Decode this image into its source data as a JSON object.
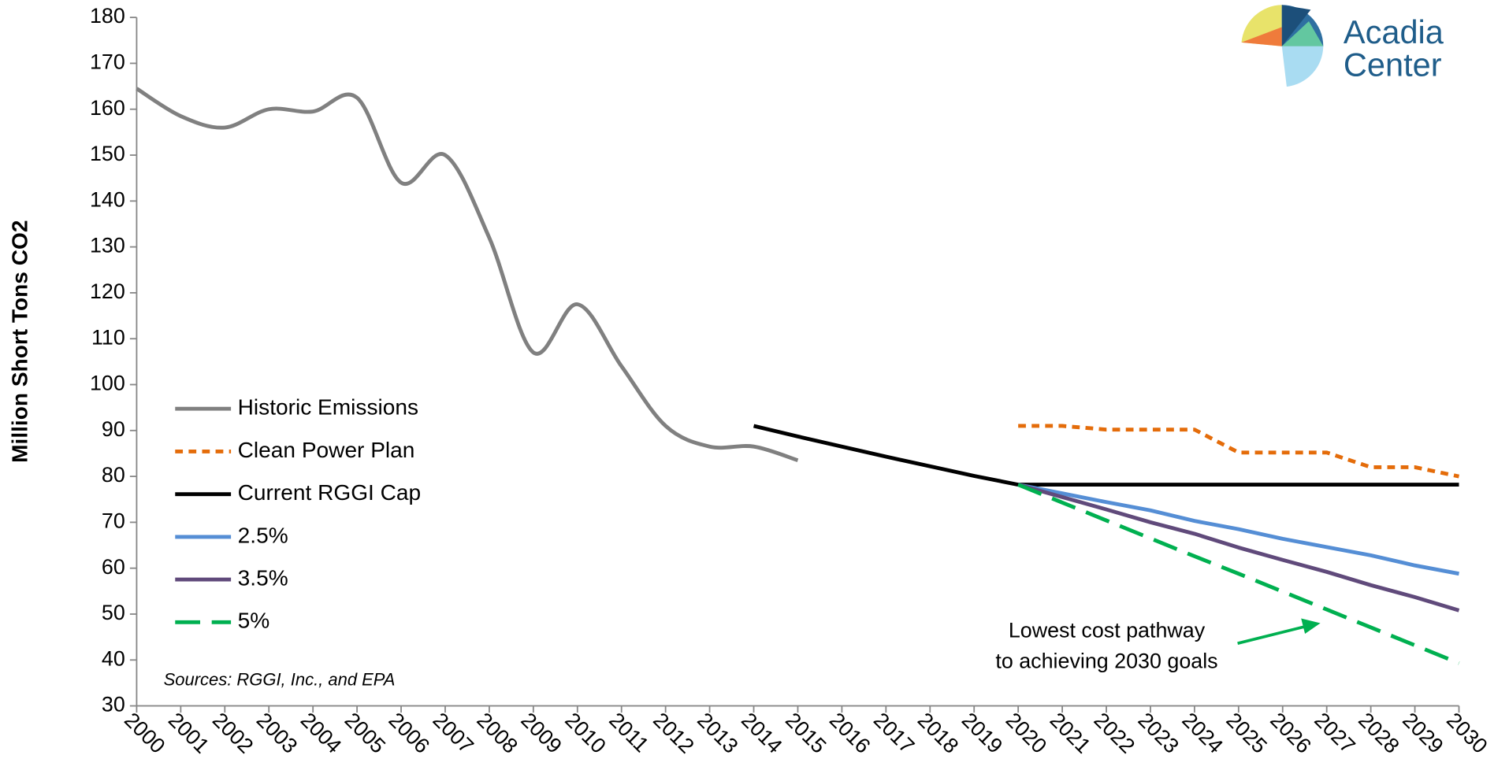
{
  "chart_data": {
    "type": "line",
    "y_label": "Million  Short Tons CO2",
    "source": "Sources: RGGI, Inc., and EPA",
    "annotation": [
      "Lowest cost pathway",
      "to achieving 2030 goals"
    ],
    "logo": [
      "Acadia",
      "Center"
    ],
    "x": [
      2000,
      2001,
      2002,
      2003,
      2004,
      2005,
      2006,
      2007,
      2008,
      2009,
      2010,
      2011,
      2012,
      2013,
      2014,
      2015,
      2016,
      2017,
      2018,
      2019,
      2020,
      2021,
      2022,
      2023,
      2024,
      2025,
      2026,
      2027,
      2028,
      2029,
      2030
    ],
    "xlim": [
      2000,
      2030
    ],
    "ylim": [
      30,
      180
    ],
    "yticks": [
      30,
      40,
      50,
      60,
      70,
      80,
      90,
      100,
      110,
      120,
      130,
      140,
      150,
      160,
      170,
      180
    ],
    "legend": "left",
    "series": [
      {
        "name": "Historic Emissions",
        "color": "#808080",
        "dash": "solid",
        "smooth": true,
        "values": [
          164.5,
          158.5,
          156,
          160,
          159.5,
          162.5,
          144,
          150,
          132,
          107,
          117.5,
          104,
          91,
          86.5,
          86.5,
          83.5,
          null,
          null,
          null,
          null,
          null,
          null,
          null,
          null,
          null,
          null,
          null,
          null,
          null,
          null,
          null
        ]
      },
      {
        "name": "Clean Power Plan",
        "color": "#e46c0a",
        "dash": "short",
        "smooth": false,
        "values": [
          null,
          null,
          null,
          null,
          null,
          null,
          null,
          null,
          null,
          null,
          null,
          null,
          null,
          null,
          null,
          null,
          null,
          null,
          null,
          null,
          91,
          91,
          90.2,
          90.2,
          90.2,
          85.2,
          85.2,
          85.2,
          82,
          82,
          80
        ]
      },
      {
        "name": "Current RGGI Cap",
        "color": "#000000",
        "dash": "solid",
        "smooth": false,
        "values": [
          null,
          null,
          null,
          null,
          null,
          null,
          null,
          null,
          null,
          null,
          null,
          null,
          null,
          null,
          91,
          88.7,
          86.5,
          84.3,
          82.2,
          80.1,
          78.2,
          78.2,
          78.2,
          78.2,
          78.2,
          78.2,
          78.2,
          78.2,
          78.2,
          78.2,
          78.2
        ]
      },
      {
        "name": "2.5%",
        "color": "#558ed5",
        "dash": "solid",
        "smooth": false,
        "values": [
          null,
          null,
          null,
          null,
          null,
          null,
          null,
          null,
          null,
          null,
          null,
          null,
          null,
          null,
          null,
          null,
          null,
          null,
          null,
          null,
          78.2,
          76.3,
          74.4,
          72.6,
          70.3,
          68.5,
          66.4,
          64.6,
          62.8,
          60.6,
          58.8
        ]
      },
      {
        "name": "3.5%",
        "color": "#604a7b",
        "dash": "solid",
        "smooth": false,
        "values": [
          null,
          null,
          null,
          null,
          null,
          null,
          null,
          null,
          null,
          null,
          null,
          null,
          null,
          null,
          null,
          null,
          null,
          null,
          null,
          null,
          78.2,
          75.5,
          72.8,
          70,
          67.5,
          64.5,
          61.8,
          59.2,
          56.3,
          53.7,
          50.8
        ]
      },
      {
        "name": "5%",
        "color": "#00b050",
        "dash": "long",
        "smooth": false,
        "values": [
          null,
          null,
          null,
          null,
          null,
          null,
          null,
          null,
          null,
          null,
          null,
          null,
          null,
          null,
          null,
          null,
          null,
          null,
          null,
          null,
          78.2,
          74.3,
          70.4,
          66.5,
          62.6,
          58.8,
          54.9,
          51,
          47.1,
          43.2,
          39.3
        ]
      }
    ]
  }
}
